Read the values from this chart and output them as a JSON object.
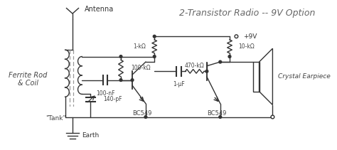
{
  "title": "2-Transistor Radio -- 9V Option",
  "title_fontsize": 9,
  "title_style": "italic",
  "line_color": "#333333",
  "text_color": "#555555",
  "labels": {
    "antenna": "Antenna",
    "ferrite": "Ferrite Rod\n& Coil",
    "tank": "\"Tank\"",
    "earth": "Earth",
    "r1": "1-kΩ",
    "r2": "100-kΩ",
    "r3": "10-kΩ",
    "r4": "470-kΩ",
    "c1": "140-pF",
    "c2": "100-nF",
    "c3": "1-μF",
    "t1": "BC549",
    "t2": "BC549",
    "v9": "+9V",
    "earpiece": "Crystal Earpiece"
  }
}
